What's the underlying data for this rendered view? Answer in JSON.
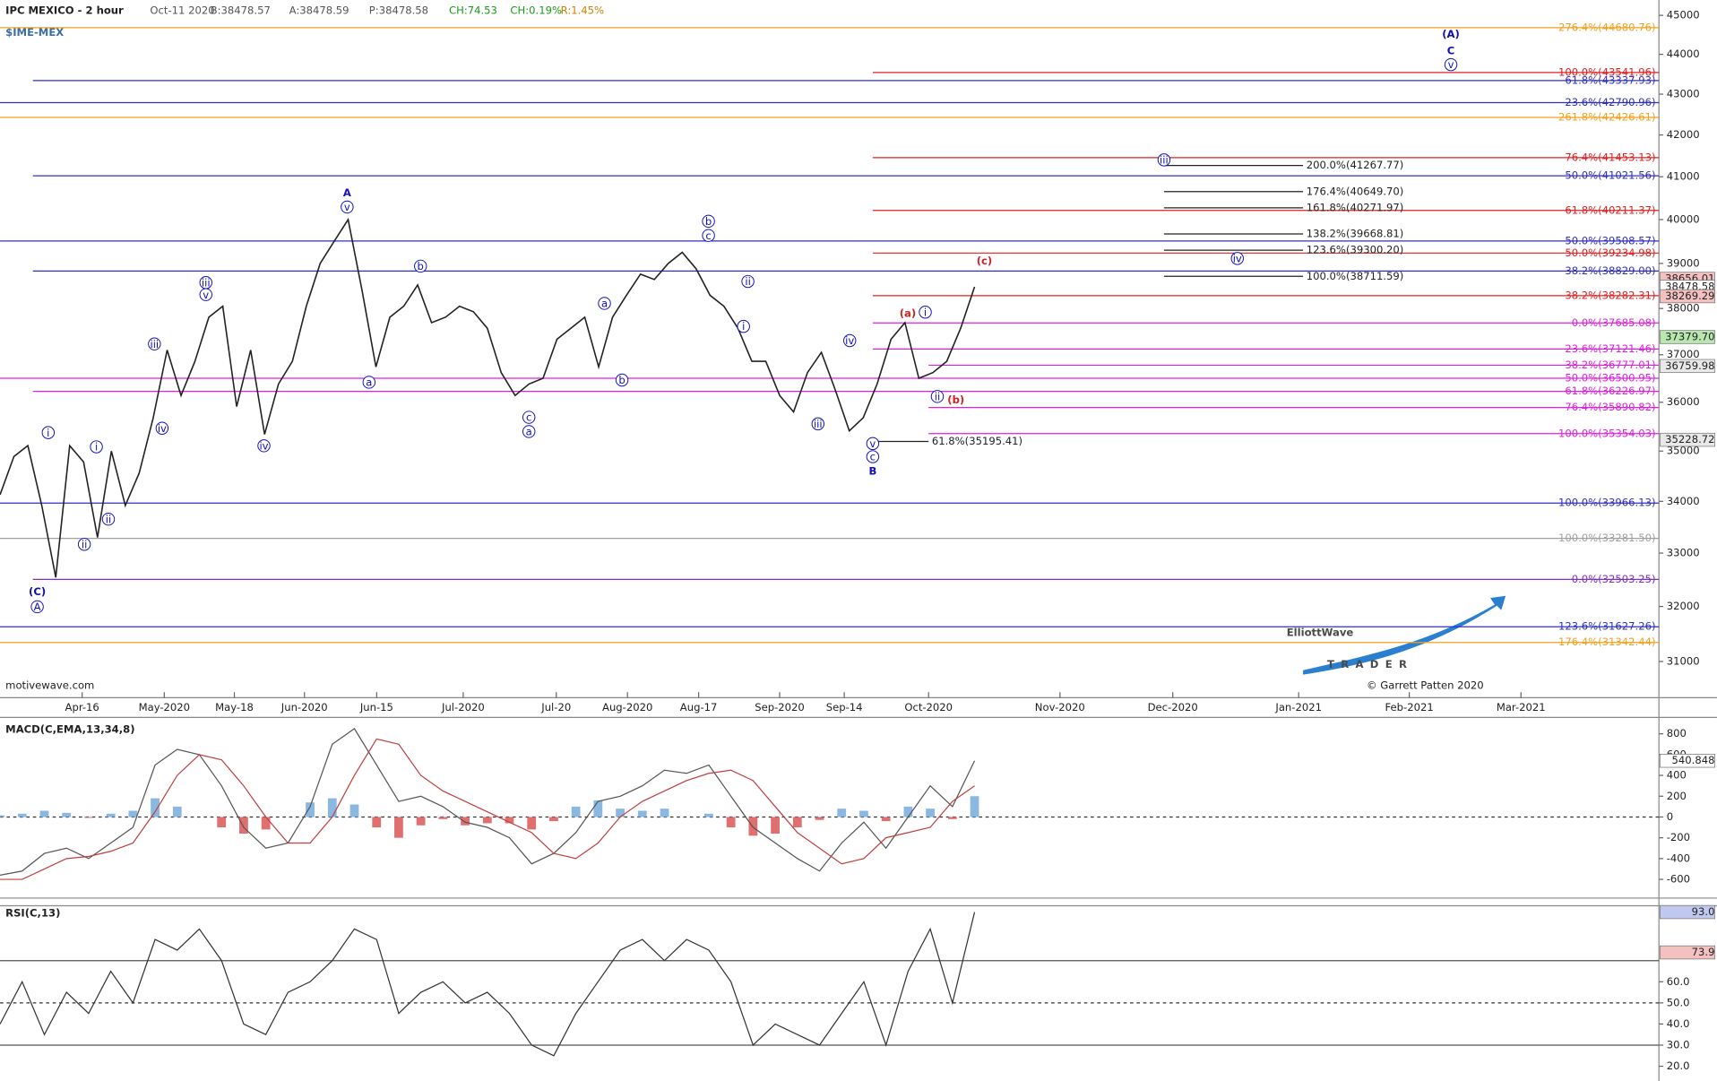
{
  "chart_data": [
    {
      "type": "price",
      "title": "IPC MEXICO - 2 hour",
      "symbol": "$IME-MEX",
      "quote": [
        "Oct-11 2020",
        "B:38478.57",
        "A:38478.59",
        "P:38478.58",
        "CH:74.53",
        "CH:0.19%",
        "R:1.45%"
      ],
      "log": true,
      "ylim": [
        30360,
        45400
      ],
      "yticks": [
        31000,
        32000,
        33000,
        34000,
        35000,
        36000,
        37000,
        38000,
        39000,
        40000,
        41000,
        42000,
        43000,
        44000,
        45000
      ],
      "x_tick_labels": [
        "Apr-16",
        "May-2020",
        "May-18",
        "Jun-2020",
        "Jun-15",
        "Jul-2020",
        "Jul-20",
        "Aug-2020",
        "Aug-17",
        "Sep-2020",
        "Sep-14",
        "Oct-2020",
        "Nov-2020",
        "Dec-2020",
        "Jan-2021",
        "Feb-2021",
        "Mar-2021"
      ],
      "series": [
        {
          "color": "#222222",
          "values": [
            34130,
            34890,
            35110,
            33920,
            32540,
            35110,
            34780,
            33300,
            35000,
            33920,
            34560,
            35680,
            37100,
            36140,
            36860,
            37810,
            38050,
            35910,
            37100,
            35340,
            36380,
            36860,
            38050,
            39000,
            39500,
            40000,
            38400,
            36740,
            37810,
            38050,
            38520,
            37690,
            37810,
            38050,
            37930,
            37570,
            36620,
            36140,
            36380,
            36500,
            37330,
            37570,
            37810,
            36740,
            37810,
            38290,
            38760,
            38640,
            39000,
            39250,
            38880,
            38290,
            38050,
            37570,
            36860,
            36860,
            36140,
            35800,
            36620,
            37050,
            36250,
            35410,
            35680,
            36380,
            37330,
            37690,
            36500,
            36620,
            36860,
            37570,
            38478.58
          ]
        }
      ],
      "levels": [
        {
          "label": "276.4%(44680.76)",
          "value": 44680.76,
          "color": "#f0a020"
        },
        {
          "label": "100.0%(43541.96)",
          "value": 43541.96,
          "color": "#e02020"
        },
        {
          "label": "61.8%(43337.93)",
          "value": 43337.93,
          "color": "#3030c0"
        },
        {
          "label": "23.6%(42790.96)",
          "value": 42790.96,
          "color": "#3030c0"
        },
        {
          "label": "261.8%(42426.61)",
          "value": 42426.61,
          "color": "#f0a020"
        },
        {
          "label": "76.4%(41453.13)",
          "value": 41453.13,
          "color": "#e02020"
        },
        {
          "label": "50.0%(41021.56)",
          "value": 41021.56,
          "color": "#3030c0"
        },
        {
          "label": "61.8%(40211.37)",
          "value": 40211.37,
          "color": "#e02020"
        },
        {
          "label": "50.0%(39508.57)",
          "value": 39508.57,
          "color": "#3030c0"
        },
        {
          "label": "50.0%(39234.98)",
          "value": 39234.98,
          "color": "#e02020"
        },
        {
          "label": "38.2%(38829.00)",
          "value": 38829.0,
          "color": "#3030c0"
        },
        {
          "label": "38.2%(38282.31)",
          "value": 38282.31,
          "color": "#e02020"
        },
        {
          "label": "0.0%(37685.08)",
          "value": 37685.08,
          "color": "#e020e0"
        },
        {
          "label": "23.6%(37121.46)",
          "value": 37121.46,
          "color": "#e020e0"
        },
        {
          "label": "38.2%(36777.01)",
          "value": 36777.01,
          "color": "#e020e0"
        },
        {
          "label": "50.0%(36500.95)",
          "value": 36500.95,
          "color": "#e020e0"
        },
        {
          "label": "61.8%(36226.97)",
          "value": 36226.97,
          "color": "#e020e0"
        },
        {
          "label": "76.4%(35890.82)",
          "value": 35890.82,
          "color": "#e020e0"
        },
        {
          "label": "100.0%(35354.03)",
          "value": 35354.03,
          "color": "#e020e0"
        },
        {
          "label": "100.0%(33966.13)",
          "value": 33966.13,
          "color": "#3030c0"
        },
        {
          "label": "100.0%(33281.50)",
          "value": 33281.5,
          "color": "#a0a0a0"
        },
        {
          "label": "0.0%(32503.25)",
          "value": 32503.25,
          "color": "#8030c0"
        },
        {
          "label": "123.6%(31627.26)",
          "value": 31627.26,
          "color": "#3030c0"
        },
        {
          "label": "176.4%(31342.44)",
          "value": 31342.44,
          "color": "#f0a020"
        },
        {
          "label": "200.0%(41267.77)",
          "value": 41267.77,
          "color": "#222222"
        },
        {
          "label": "176.4%(40649.70)",
          "value": 40649.7,
          "color": "#222222"
        },
        {
          "label": "161.8%(40271.97)",
          "value": 40271.97,
          "color": "#222222"
        },
        {
          "label": "138.2%(39668.81)",
          "value": 39668.81,
          "color": "#222222"
        },
        {
          "label": "123.6%(39300.20)",
          "value": 39300.2,
          "color": "#222222"
        },
        {
          "label": "100.0%(38711.59)",
          "value": 38711.59,
          "color": "#222222"
        },
        {
          "label": "61.8%(35195.41)",
          "value": 35195.41,
          "color": "#222222"
        }
      ],
      "price_tags": [
        {
          "value": 38656.01,
          "label": "38656.01",
          "color": "#f4c0c0"
        },
        {
          "value": 38478.58,
          "label": "38478.58",
          "color": "#ffffff"
        },
        {
          "value": 38269.29,
          "label": "38269.29",
          "color": "#f4c0c0"
        },
        {
          "value": 37379.7,
          "label": "37379.70",
          "color": "#b8e8b0"
        },
        {
          "value": 36759.98,
          "label": "36759.98",
          "color": "#e8e8e8"
        },
        {
          "value": 35228.72,
          "label": "35228.72",
          "color": "#e8e8e8"
        }
      ],
      "wave_labels": [
        {
          "text": "(C)",
          "color": "#1010a0"
        },
        {
          "text": "A",
          "color": "#1010c0"
        },
        {
          "text": "i",
          "color": "#1010c0"
        },
        {
          "text": "ii",
          "color": "#1010c0"
        },
        {
          "text": "i",
          "color": "#1010c0"
        },
        {
          "text": "ii",
          "color": "#1010c0"
        },
        {
          "text": "iii",
          "color": "#1010c0"
        },
        {
          "text": "iv",
          "color": "#1010c0"
        },
        {
          "text": "iii",
          "color": "#1010c0"
        },
        {
          "text": "v",
          "color": "#1010c0"
        },
        {
          "text": "iv",
          "color": "#1010c0"
        },
        {
          "text": "A",
          "color": "#1010c0"
        },
        {
          "text": "v",
          "color": "#1010c0"
        },
        {
          "text": "a",
          "color": "#1010c0"
        },
        {
          "text": "b",
          "color": "#1010c0"
        },
        {
          "text": "c",
          "color": "#1010c0"
        },
        {
          "text": "a",
          "color": "#1010c0"
        },
        {
          "text": "a",
          "color": "#1010c0"
        },
        {
          "text": "b",
          "color": "#1010c0"
        },
        {
          "text": "b",
          "color": "#1010c0"
        },
        {
          "text": "c",
          "color": "#1010c0"
        },
        {
          "text": "ii",
          "color": "#1010c0"
        },
        {
          "text": "i",
          "color": "#1010c0"
        },
        {
          "text": "iv",
          "color": "#1010c0"
        },
        {
          "text": "iii",
          "color": "#1010c0"
        },
        {
          "text": "v",
          "color": "#1010c0"
        },
        {
          "text": "c",
          "color": "#1010c0"
        },
        {
          "text": "B",
          "color": "#1010c0"
        },
        {
          "text": "(a)",
          "color": "#d02020"
        },
        {
          "text": "i",
          "color": "#1010c0"
        },
        {
          "text": "ii",
          "color": "#1010c0"
        },
        {
          "text": "(b)",
          "color": "#d02020"
        },
        {
          "text": "(c)",
          "color": "#d02020"
        },
        {
          "text": "iii",
          "color": "#1010c0"
        },
        {
          "text": "iv",
          "color": "#1010c0"
        },
        {
          "text": "(A)",
          "color": "#1010a0"
        },
        {
          "text": "C",
          "color": "#1010c0"
        },
        {
          "text": "v",
          "color": "#1010c0"
        }
      ],
      "source": "motivewave.com",
      "logo": "ElliottWave",
      "logo_tagline": "TRADER",
      "copyright": "© Garrett Patten 2020"
    },
    {
      "type": "macd",
      "title": "MACD(C,EMA,13,34,8)",
      "ylim": [
        -780,
        958
      ],
      "yticks": [
        -600,
        -400,
        -200,
        0,
        200,
        400,
        600,
        800
      ],
      "hlines": [
        {
          "value": 0,
          "dash": true
        }
      ],
      "series": [
        {
          "style": "bar",
          "color": "#8ab8e0",
          "negative_color": "#e07070",
          "values": [
            16,
            32,
            60,
            40,
            -8,
            32,
            60,
            180,
            100,
            0,
            -100,
            -160,
            -120,
            0,
            140,
            180,
            120,
            -100,
            -200,
            -80,
            -20,
            -80,
            -60,
            -60,
            -120,
            -40,
            100,
            160,
            80,
            60,
            80,
            0,
            32,
            -100,
            -180,
            -160,
            -100,
            -28,
            80,
            60,
            -40,
            100,
            80,
            -20,
            200
          ]
        },
        {
          "style": "line",
          "color": "#555555",
          "values": [
            -560,
            -520,
            -350,
            -300,
            -400,
            -250,
            -100,
            500,
            650,
            600,
            300,
            -100,
            -300,
            -250,
            100,
            700,
            850,
            500,
            150,
            200,
            100,
            -50,
            -100,
            -200,
            -450,
            -350,
            -150,
            150,
            200,
            300,
            450,
            420,
            500,
            200,
            -100,
            -250,
            -400,
            -520,
            -250,
            -50,
            -300,
            0,
            300,
            100,
            540.848
          ]
        },
        {
          "style": "line",
          "color": "#c04040",
          "values": [
            -600,
            -600,
            -500,
            -400,
            -380,
            -330,
            -250,
            50,
            400,
            600,
            550,
            300,
            0,
            -250,
            -250,
            0,
            400,
            750,
            700,
            400,
            250,
            150,
            50,
            -50,
            -150,
            -350,
            -400,
            -250,
            0,
            150,
            250,
            350,
            420,
            450,
            350,
            100,
            -150,
            -300,
            -450,
            -400,
            -200,
            -150,
            -100,
            150,
            300
          ]
        }
      ],
      "price_tags": [
        {
          "value": 540.848,
          "label": "540.848",
          "color": "#ffffff"
        }
      ]
    },
    {
      "type": "rsi",
      "title": "RSI(C,13)",
      "ylim": [
        13,
        96
      ],
      "yticks": [
        {
          "value": 20,
          "label": "20.0"
        },
        {
          "value": 30,
          "label": "30.0"
        },
        {
          "value": 40,
          "label": "40.0"
        },
        {
          "value": 50,
          "label": "50.0"
        },
        {
          "value": 60,
          "label": "60.0"
        }
      ],
      "hlines": [
        {
          "value": 70,
          "dash": false
        },
        {
          "value": 50,
          "dash": true
        },
        {
          "value": 30,
          "dash": false
        }
      ],
      "series": [
        {
          "style": "line",
          "color": "#333333",
          "values": [
            40,
            60,
            35,
            55,
            45,
            65,
            50,
            80,
            75,
            85,
            70,
            40,
            35,
            55,
            60,
            70,
            85,
            80,
            45,
            55,
            60,
            50,
            55,
            45,
            30,
            25,
            45,
            60,
            75,
            80,
            70,
            80,
            75,
            60,
            30,
            40,
            35,
            30,
            45,
            60,
            30,
            65,
            85,
            50,
            93
          ]
        }
      ],
      "price_tags": [
        {
          "value": 93,
          "label": "93.0",
          "color": "#c0c8f0"
        },
        {
          "value": 73.9,
          "label": "73.9",
          "color": "#f4c0c0"
        }
      ]
    }
  ]
}
